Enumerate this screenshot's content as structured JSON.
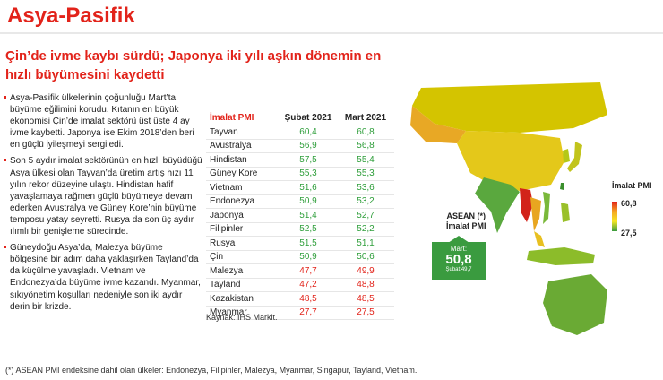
{
  "title": "Asya-Pasifik",
  "subtitle": "Çin’de ivme kaybı sürdü; Japonya iki yılı aşkın dönemin en hızlı büyümesini kaydetti",
  "bullets": [
    "Asya-Pasifik ülkelerinin çoğunluğu Mart’ta büyüme eğilimini korudu. Kıtanın en büyük ekonomisi Çin’de imalat sektörü üst üste 4 ay ivme kaybetti. Japonya ise Ekim 2018’den beri en güçlü iyileşmeyi sergiledi.",
    "Son 5 aydır imalat sektörünün en hızlı büyüdüğü Asya ülkesi olan Tayvan’da üretim artış hızı 11 yılın rekor düzeyine ulaştı. Hindistan hafif yavaşlamaya rağmen güçlü büyümeye devam ederken Avustralya ve Güney Kore’nin büyüme temposu yatay seyretti. Rusya da son üç aydır ılımlı bir genişleme sürecinde.",
    "Güneydoğu Asya’da, Malezya büyüme bölgesine bir adım daha yaklaşırken Tayland’da da küçülme yavaşladı. Vietnam ve Endonezya’da büyüme ivme kazandı. Myanmar, sıkıyönetim koşulları nedeniyle son iki aydır derin bir krizde."
  ],
  "table": {
    "headers": [
      "İmalat PMI",
      "Şubat 2021",
      "Mart 2021"
    ],
    "rows": [
      {
        "country": "Tayvan",
        "feb": "60,4",
        "mar": "60,8",
        "trend": "up"
      },
      {
        "country": "Avustralya",
        "feb": "56,9",
        "mar": "56,8",
        "trend": "up"
      },
      {
        "country": "Hindistan",
        "feb": "57,5",
        "mar": "55,4",
        "trend": "up"
      },
      {
        "country": "Güney Kore",
        "feb": "55,3",
        "mar": "55,3",
        "trend": "up"
      },
      {
        "country": "Vietnam",
        "feb": "51,6",
        "mar": "53,6",
        "trend": "up"
      },
      {
        "country": "Endonezya",
        "feb": "50,9",
        "mar": "53,2",
        "trend": "up"
      },
      {
        "country": "Japonya",
        "feb": "51,4",
        "mar": "52,7",
        "trend": "up"
      },
      {
        "country": "Filipinler",
        "feb": "52,5",
        "mar": "52,2",
        "trend": "up"
      },
      {
        "country": "Rusya",
        "feb": "51,5",
        "mar": "51,1",
        "trend": "up"
      },
      {
        "country": "Çin",
        "feb": "50,9",
        "mar": "50,6",
        "trend": "up"
      },
      {
        "country": "Malezya",
        "feb": "47,7",
        "mar": "49,9",
        "trend": "down"
      },
      {
        "country": "Tayland",
        "feb": "47,2",
        "mar": "48,8",
        "trend": "down"
      },
      {
        "country": "Kazakistan",
        "feb": "48,5",
        "mar": "48,5",
        "trend": "down"
      },
      {
        "country": "Myanmar",
        "feb": "27,7",
        "mar": "27,5",
        "trend": "down"
      }
    ]
  },
  "source": "Kaynak: IHS Markit.",
  "footnote": "(*) ASEAN PMI endeksine dahil olan ülkeler: Endonezya, Filipinler, Malezya, Myanmar, Singapur, Tayland, Vietnam.",
  "asean": {
    "label_line1": "ASEAN (*)",
    "label_line2": "İmalat PMI",
    "month": "Mart:",
    "value": "50,8",
    "prev": "Şubat:49,7",
    "color": "#3a9b3f"
  },
  "legend": {
    "title_line1": "İmalat PMI",
    "max": "60,8",
    "min": "27,5"
  },
  "colors": {
    "accent": "#e2231a",
    "up": "#2e9e3a",
    "down": "#e2231a"
  }
}
